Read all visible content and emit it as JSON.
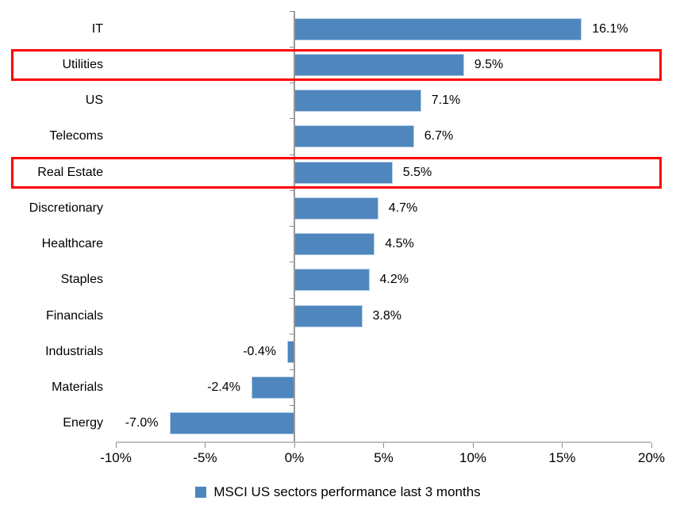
{
  "chart_data": {
    "type": "bar",
    "orientation": "horizontal",
    "title": "",
    "categories": [
      "IT",
      "Utilities",
      "US",
      "Telecoms",
      "Real Estate",
      "Discretionary",
      "Healthcare",
      "Staples",
      "Financials",
      "Industrials",
      "Materials",
      "Energy"
    ],
    "values": [
      16.1,
      9.5,
      7.1,
      6.7,
      5.5,
      4.7,
      4.5,
      4.2,
      3.8,
      -0.4,
      -2.4,
      -7.0
    ],
    "value_labels": [
      "16.1%",
      "9.5%",
      "7.1%",
      "6.7%",
      "5.5%",
      "4.7%",
      "4.5%",
      "4.2%",
      "3.8%",
      "-0.4%",
      "-2.4%",
      "-7.0%"
    ],
    "xlim": [
      -10,
      20
    ],
    "x_tick_values": [
      -10,
      -5,
      0,
      5,
      10,
      15,
      20
    ],
    "x_tick_labels": [
      "-10%",
      "-5%",
      "0%",
      "5%",
      "10%",
      "15%",
      "20%"
    ],
    "grid": false,
    "legend": "MSCI US sectors performance last 3 months",
    "legend_position": "bottom",
    "bar_color": "#4f86bd",
    "bar_border_color": "#b5cfe8",
    "zero_line_color": "#999999",
    "axis_line_color": "#bfbfbf",
    "tick_color": "#8c8c8c",
    "highlight_color": "#ff0000",
    "highlighted_categories": [
      "Utilities",
      "Real Estate"
    ]
  }
}
